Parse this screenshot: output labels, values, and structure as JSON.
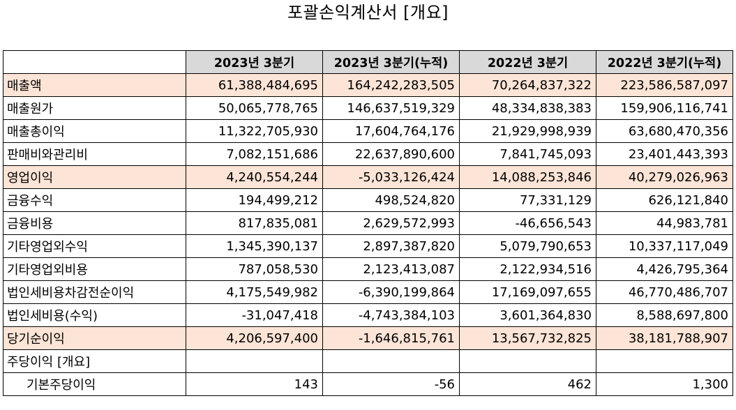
{
  "title": "포괄손익계산서 [개요]",
  "columns": [
    "",
    "2023년 3분기",
    "2023년 3분기(누적)",
    "2022년 3분기",
    "2022년 3분기(누적)"
  ],
  "rows": [
    {
      "label": "매출액",
      "values": [
        "61,388,484,695",
        "164,242,283,505",
        "70,264,837,322",
        "223,586,587,097"
      ],
      "highlight": true
    },
    {
      "label": "매출원가",
      "values": [
        "50,065,778,765",
        "146,637,519,329",
        "48,334,838,383",
        "159,906,116,741"
      ],
      "highlight": false
    },
    {
      "label": "매출총이익",
      "values": [
        "11,322,705,930",
        "17,604,764,176",
        "21,929,998,939",
        "63,680,470,356"
      ],
      "highlight": false
    },
    {
      "label": "판매비와관리비",
      "values": [
        "7,082,151,686",
        "22,637,890,600",
        "7,841,745,093",
        "23,401,443,393"
      ],
      "highlight": false
    },
    {
      "label": "영업이익",
      "values": [
        "4,240,554,244",
        "-5,033,126,424",
        "14,088,253,846",
        "40,279,026,963"
      ],
      "highlight": true
    },
    {
      "label": "금융수익",
      "values": [
        "194,499,212",
        "498,524,820",
        "77,331,129",
        "626,121,840"
      ],
      "highlight": false
    },
    {
      "label": "금융비용",
      "values": [
        "817,835,081",
        "2,629,572,993",
        "-46,656,543",
        "44,983,781"
      ],
      "highlight": false
    },
    {
      "label": "기타영업외수익",
      "values": [
        "1,345,390,137",
        "2,897,387,820",
        "5,079,790,653",
        "10,337,117,049"
      ],
      "highlight": false
    },
    {
      "label": "기타영업외비용",
      "values": [
        "787,058,530",
        "2,123,413,087",
        "2,122,934,516",
        "4,426,795,364"
      ],
      "highlight": false
    },
    {
      "label": "법인세비용차감전순이익",
      "values": [
        "4,175,549,982",
        "-6,390,199,864",
        "17,169,097,655",
        "46,770,486,707"
      ],
      "highlight": false
    },
    {
      "label": "법인세비용(수익)",
      "values": [
        "-31,047,418",
        "-4,743,384,103",
        "3,601,364,830",
        "8,588,697,800"
      ],
      "highlight": false
    },
    {
      "label": "당기순이익",
      "values": [
        "4,206,597,400",
        "-1,646,815,761",
        "13,567,732,825",
        "38,181,788,907"
      ],
      "highlight": true
    },
    {
      "label": "주당이익 [개요]",
      "values": [
        "",
        "",
        "",
        ""
      ],
      "highlight": false
    },
    {
      "label": "기본주당이익",
      "values": [
        "143",
        "-56",
        "462",
        "1,300"
      ],
      "highlight": false,
      "indent": true
    }
  ]
}
